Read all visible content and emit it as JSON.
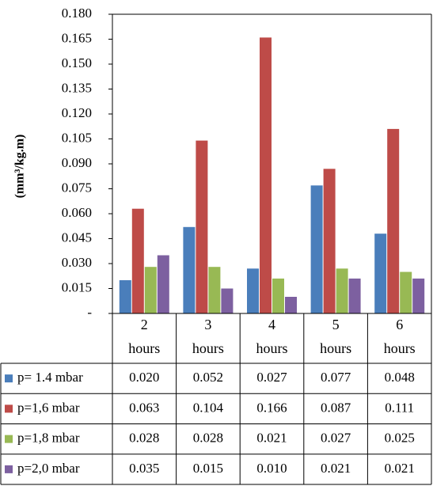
{
  "chart_data": {
    "type": "bar",
    "ylabel": "(mm³/kg.m)",
    "ylim": [
      0,
      0.18
    ],
    "y_ticks": [
      "-",
      "0.015",
      "0.030",
      "0.045",
      "0.060",
      "0.075",
      "0.090",
      "0.105",
      "0.120",
      "0.135",
      "0.150",
      "0.165",
      "0.180"
    ],
    "categories": [
      {
        "num": "2",
        "unit": "hours"
      },
      {
        "num": "3",
        "unit": "hours"
      },
      {
        "num": "4",
        "unit": "hours"
      },
      {
        "num": "5",
        "unit": "hours"
      },
      {
        "num": "6",
        "unit": "hours"
      }
    ],
    "series": [
      {
        "name": "p= 1.4 mbar",
        "color": "#4a7ebb",
        "values": [
          0.02,
          0.052,
          0.027,
          0.077,
          0.048
        ],
        "labels": [
          "0.020",
          "0.052",
          "0.027",
          "0.077",
          "0.048"
        ]
      },
      {
        "name": "p=1,6 mbar",
        "color": "#be4b48",
        "values": [
          0.063,
          0.104,
          0.166,
          0.087,
          0.111
        ],
        "labels": [
          "0.063",
          "0.104",
          "0.166",
          "0.087",
          "0.111"
        ]
      },
      {
        "name": "p=1,8 mbar",
        "color": "#98b954",
        "values": [
          0.028,
          0.028,
          0.021,
          0.027,
          0.025
        ],
        "labels": [
          "0.028",
          "0.028",
          "0.021",
          "0.027",
          "0.025"
        ]
      },
      {
        "name": "p=2,0 mbar",
        "color": "#7d60a0",
        "values": [
          0.035,
          0.015,
          0.01,
          0.021,
          0.021
        ],
        "labels": [
          "0.035",
          "0.015",
          "0.010",
          "0.021",
          "0.021"
        ]
      }
    ],
    "legend_placement": "data-table-left",
    "grid": false
  }
}
